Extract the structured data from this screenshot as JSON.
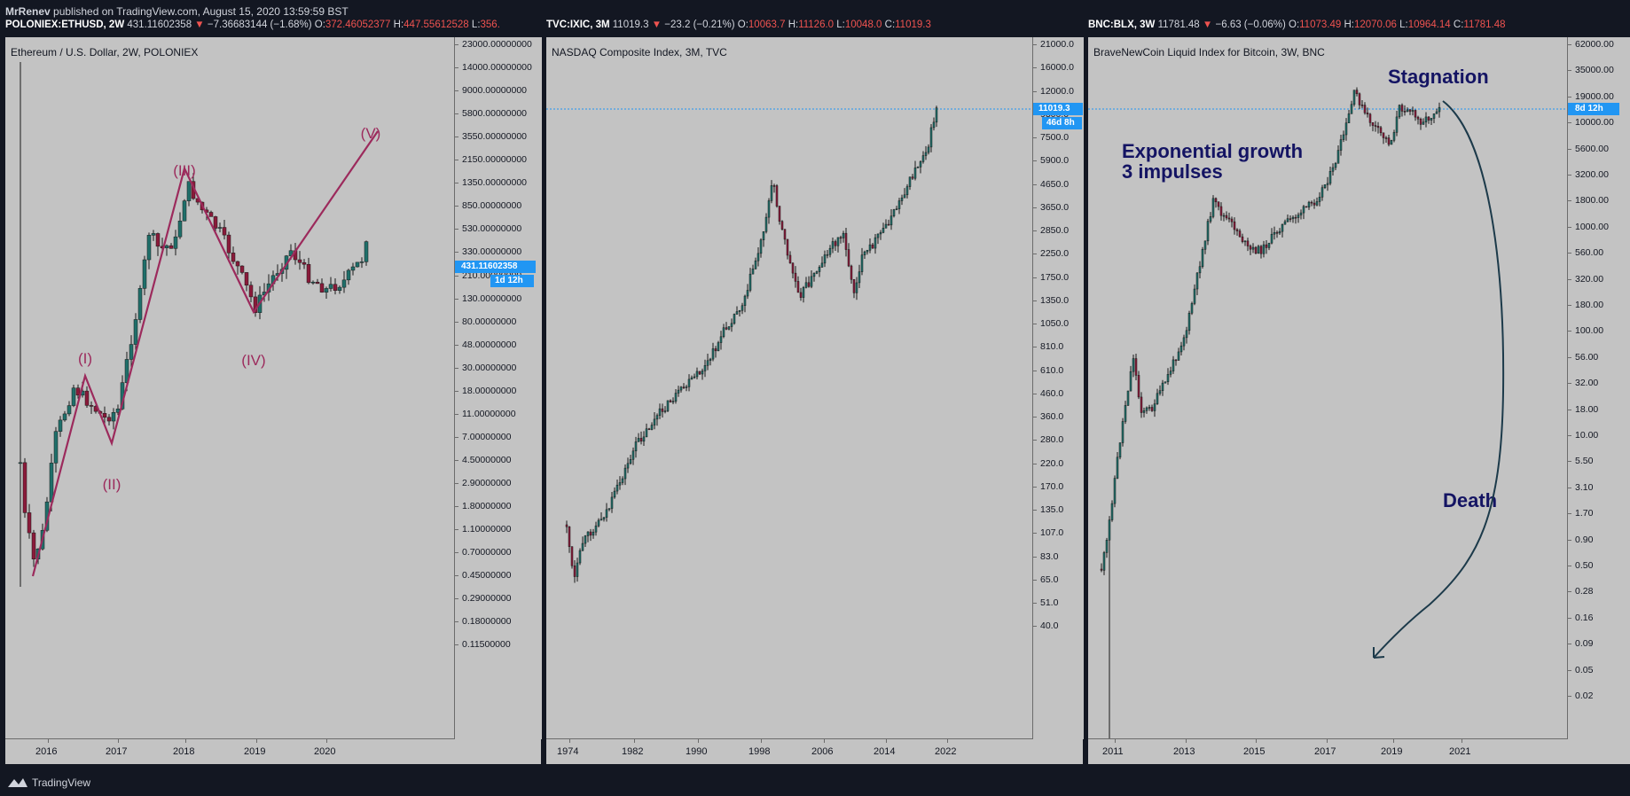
{
  "topline": {
    "author": "MrRenev",
    "text": " published on TradingView.com, August 15, 2020 13:59:59 BST"
  },
  "headers": [
    {
      "symbol": "POLONIEX:ETHUSD, 2W",
      "price": "431.11602358",
      "chg": "−7.36683144 (−1.68%)",
      "o": "372.46052377",
      "h": "447.55612528",
      "l": "356."
    },
    {
      "symbol": "TVC:IXIC, 3M",
      "price": "11019.3",
      "chg": "−23.2 (−0.21%)",
      "o": "10063.7",
      "h": "11126.0",
      "l": "10048.0",
      "c": "11019.3"
    },
    {
      "symbol": "BNC:BLX, 3W",
      "price": "11781.48",
      "chg": "−6.63 (−0.06%)",
      "o": "11073.49",
      "h": "12070.06",
      "l": "10964.14",
      "c": "11781.48"
    }
  ],
  "panels": [
    {
      "title": "Ethereum / U.S. Dollar, 2W, POLONIEX",
      "yticks": [
        "23000.00000000",
        "14000.00000000",
        "9000.00000000",
        "5800.00000000",
        "3550.00000000",
        "2150.00000000",
        "1350.00000000",
        "850.00000000",
        "530.00000000",
        "330.00000000",
        "210.00000000",
        "130.00000000",
        "80.00000000",
        "48.00000000",
        "30.00000000",
        "18.00000000",
        "11.00000000",
        "7.00000000",
        "4.50000000",
        "2.90000000",
        "1.80000000",
        "1.10000000",
        "0.70000000",
        "0.45000000",
        "0.29000000",
        "0.18000000",
        "0.11500000"
      ],
      "xticks": [
        "2016",
        "2017",
        "2018",
        "2019",
        "2020"
      ],
      "price_label": "431.11602358",
      "time_label": "1d 12h",
      "waves": [
        "(I)",
        "(II)",
        "(III)",
        "(IV)",
        "(V)"
      ]
    },
    {
      "title": "NASDAQ Composite Index, 3M, TVC",
      "yticks": [
        "21000.0",
        "16000.0",
        "12000.0",
        "9300.0",
        "7500.0",
        "5900.0",
        "4650.0",
        "3650.0",
        "2850.0",
        "2250.0",
        "1750.0",
        "1350.0",
        "1050.0",
        "810.0",
        "610.0",
        "460.0",
        "360.0",
        "280.0",
        "220.0",
        "170.0",
        "135.0",
        "107.0",
        "83.0",
        "65.0",
        "51.0",
        "40.0"
      ],
      "xticks": [
        "1974",
        "1982",
        "1990",
        "1998",
        "2006",
        "2014",
        "2022"
      ],
      "price_label": "11019.3",
      "time_label": "46d 8h"
    },
    {
      "title": "BraveNewCoin Liquid Index for Bitcoin, 3W, BNC",
      "yticks": [
        "62000.00",
        "35000.00",
        "19000.00",
        "10000.00",
        "5600.00",
        "3200.00",
        "1800.00",
        "1000.00",
        "560.00",
        "320.00",
        "180.00",
        "100.00",
        "56.00",
        "32.00",
        "18.00",
        "10.00",
        "5.50",
        "3.10",
        "1.70",
        "0.90",
        "0.50",
        "0.28",
        "0.16",
        "0.09",
        "0.05",
        "0.02"
      ],
      "xticks": [
        "2011",
        "2013",
        "2015",
        "2017",
        "2019",
        "2021"
      ],
      "price_label": "8d 12h",
      "annotations": {
        "growth1": "Exponential growth",
        "growth2": "3 impulses",
        "stagnation": "Stagnation",
        "death": "Death"
      }
    }
  ],
  "footer": {
    "brand": "TradingView"
  },
  "colors": {
    "bg": "#131722",
    "panel": "#c3c3c3",
    "wave": "#9c2a5c",
    "annot": "#141463",
    "curve": "#1c3a4a",
    "blue": "#2196f3"
  },
  "chart_data": [
    {
      "type": "candlestick",
      "title": "Ethereum / U.S. Dollar, 2W, POLONIEX",
      "scale": "log",
      "ylim": [
        0.115,
        23000
      ],
      "x": [
        "2015-08",
        "2016-01",
        "2016-06",
        "2016-12",
        "2017-06",
        "2018-01",
        "2018-06",
        "2018-12",
        "2019-06",
        "2020-01",
        "2020-08"
      ],
      "close": [
        0.9,
        1.0,
        14,
        8,
        300,
        1100,
        450,
        85,
        300,
        130,
        431.12
      ],
      "elliott_waves": [
        {
          "label": "(I)",
          "value": 18
        },
        {
          "label": "(II)",
          "value": 6
        },
        {
          "label": "(III)",
          "value": 1400
        },
        {
          "label": "(IV)",
          "value": 82
        },
        {
          "label": "(V)",
          "value": 2800
        }
      ]
    },
    {
      "type": "candlestick",
      "title": "NASDAQ Composite Index, 3M, TVC",
      "scale": "log",
      "ylim": [
        40,
        21000
      ],
      "x": [
        "1972",
        "1974",
        "1978",
        "1982",
        "1986",
        "1990",
        "1994",
        "1998",
        "2000",
        "2002",
        "2006",
        "2008",
        "2010",
        "2014",
        "2018",
        "2020"
      ],
      "close": [
        110,
        60,
        110,
        200,
        350,
        400,
        700,
        1700,
        4500,
        1300,
        2400,
        1400,
        2600,
        4600,
        7500,
        11019.3
      ]
    },
    {
      "type": "candlestick",
      "title": "BraveNewCoin Liquid Index for Bitcoin, 3W, BNC",
      "scale": "log",
      "ylim": [
        0.02,
        62000
      ],
      "x": [
        "2010-07",
        "2011-06",
        "2011-11",
        "2013-04",
        "2013-12",
        "2015-01",
        "2015-09",
        "2017-12",
        "2018-12",
        "2019-06",
        "2020-03",
        "2020-08"
      ],
      "close": [
        0.07,
        18,
        3,
        150,
        1000,
        200,
        250,
        17000,
        3500,
        11000,
        5500,
        11781.48
      ]
    }
  ]
}
